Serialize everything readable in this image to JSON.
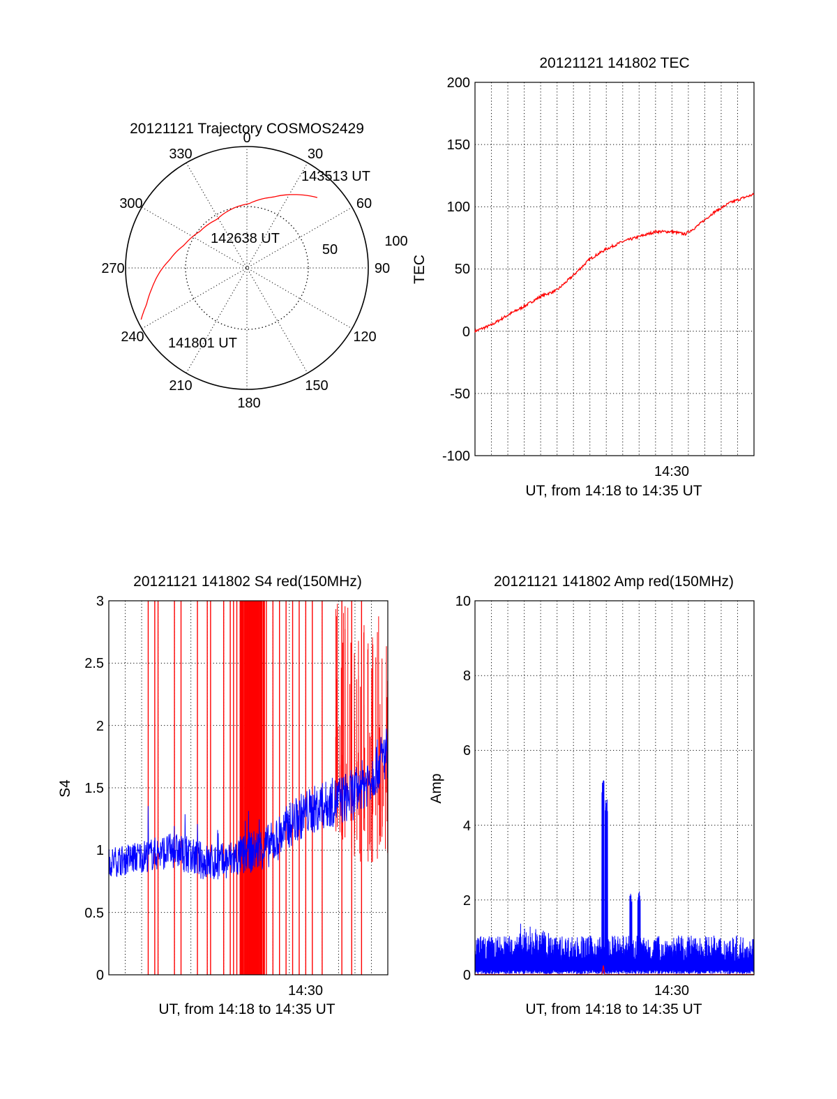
{
  "polar": {
    "title": "20121121 Trajectory COSMOS2429",
    "azimuth_labels": [
      "0",
      "30",
      "60",
      "90",
      "120",
      "150",
      "180",
      "210",
      "240",
      "270",
      "300",
      "330"
    ],
    "ring_labels": [
      "50",
      "100"
    ],
    "point_labels": {
      "start": "141801 UT",
      "mid": "142638 UT",
      "end": "143513 UT"
    }
  },
  "tec": {
    "title": "20121121 141802 TEC",
    "ylabel": "TEC",
    "xlabel": "UT, from 14:18 to 14:35 UT",
    "xtick_label": "14:30",
    "yticks": [
      "200",
      "150",
      "100",
      "50",
      "0",
      "-50",
      "-100"
    ]
  },
  "s4": {
    "title": "20121121 141802 S4 red(150MHz)",
    "ylabel": "S4",
    "xlabel": "UT, from 14:18 to 14:35 UT",
    "xtick_label": "14:30",
    "yticks": [
      "3",
      "2.5",
      "2",
      "1.5",
      "1",
      "0.5",
      "0"
    ]
  },
  "amp": {
    "title": "20121121 141802 Amp red(150MHz)",
    "ylabel": "Amp",
    "xlabel": "UT, from 14:18 to 14:35 UT",
    "xtick_label": "14:30",
    "yticks": [
      "10",
      "8",
      "6",
      "4",
      "2",
      "0"
    ]
  },
  "chart_data": [
    {
      "type": "polar-trajectory",
      "title": "20121121 Trajectory COSMOS2429",
      "r_rings": [
        50,
        100
      ],
      "azimuth_ticks_deg": [
        0,
        30,
        60,
        90,
        120,
        150,
        180,
        210,
        240,
        270,
        300,
        330
      ],
      "track": {
        "color": "#ff0000",
        "points": [
          {
            "az": 244,
            "r": 97,
            "label": "141801 UT"
          },
          {
            "az": 250,
            "r": 88
          },
          {
            "az": 258,
            "r": 80
          },
          {
            "az": 266,
            "r": 73
          },
          {
            "az": 276,
            "r": 64
          },
          {
            "az": 290,
            "r": 55
          },
          {
            "az": 308,
            "r": 49
          },
          {
            "az": 328,
            "r": 47
          },
          {
            "az": 345,
            "r": 50,
            "label": "142638 UT"
          },
          {
            "az": 2,
            "r": 53
          },
          {
            "az": 20,
            "r": 62
          },
          {
            "az": 33,
            "r": 72
          },
          {
            "az": 45,
            "r": 82,
            "label": "143513 UT"
          }
        ]
      }
    },
    {
      "type": "line",
      "title": "20121121 141802 TEC",
      "xlabel": "UT, from 14:18 to 14:35 UT",
      "ylabel": "TEC",
      "xlim_min": [
        0,
        17
      ],
      "ylim": [
        -100,
        200
      ],
      "grid": true,
      "series": [
        {
          "color": "#ff0000",
          "x_min": [
            0,
            1,
            2,
            3,
            4,
            5,
            6,
            7,
            8,
            9,
            10,
            11,
            12,
            12.8,
            13.5,
            14.5,
            15.5,
            16.3,
            17
          ],
          "y": [
            0,
            5,
            13,
            20,
            28,
            33,
            45,
            58,
            66,
            72,
            76,
            80,
            80,
            78,
            84,
            95,
            103,
            107,
            110
          ]
        }
      ]
    },
    {
      "type": "line",
      "title": "20121121 141802 S4 red(150MHz)",
      "xlabel": "UT, from 14:18 to 14:35 UT",
      "ylabel": "S4",
      "xlim_min": [
        0,
        17
      ],
      "ylim": [
        0,
        3
      ],
      "grid": true,
      "series": [
        {
          "color": "#0000ff",
          "x_min": [
            0,
            2,
            4,
            5,
            6,
            7,
            8,
            9,
            10,
            11,
            12,
            13,
            14,
            15,
            16,
            17
          ],
          "y": [
            0.9,
            0.95,
            1.0,
            0.95,
            0.9,
            0.9,
            0.95,
            1.0,
            1.05,
            1.2,
            1.3,
            1.35,
            1.4,
            1.45,
            1.6,
            1.8
          ]
        },
        {
          "color": "#ff0000",
          "note_values": "spikes to 3",
          "x_min": [
            2.4,
            2.8,
            3.0,
            4.0,
            4.4,
            5.4,
            6.0,
            6.2,
            7.0,
            7.4,
            7.6,
            7.8,
            8.0,
            8.4,
            8.6,
            8.8,
            9.0,
            9.2,
            9.6,
            10.0,
            10.4,
            10.8,
            11.2,
            11.6,
            12.0,
            12.4,
            13.0,
            14.2,
            14.8,
            15.4
          ],
          "y": [
            3,
            3,
            3,
            3,
            3,
            3,
            3,
            3,
            3,
            3,
            3,
            3,
            3,
            3,
            3,
            3,
            3,
            3,
            3,
            3,
            3,
            3,
            3,
            3,
            3,
            3,
            3,
            3,
            3,
            3
          ]
        }
      ]
    },
    {
      "type": "line",
      "title": "20121121 141802 Amp red(150MHz)",
      "xlabel": "UT, from 14:18 to 14:35 UT",
      "ylabel": "Amp",
      "xlim_min": [
        0,
        17
      ],
      "ylim": [
        0,
        10
      ],
      "grid": true,
      "series": [
        {
          "color": "#0000ff",
          "baseline": 0.6,
          "x_min": [
            7.8,
            8.0,
            9.5,
            10.0
          ],
          "y": [
            5.3,
            4.7,
            2.2,
            2.3
          ]
        }
      ]
    }
  ]
}
